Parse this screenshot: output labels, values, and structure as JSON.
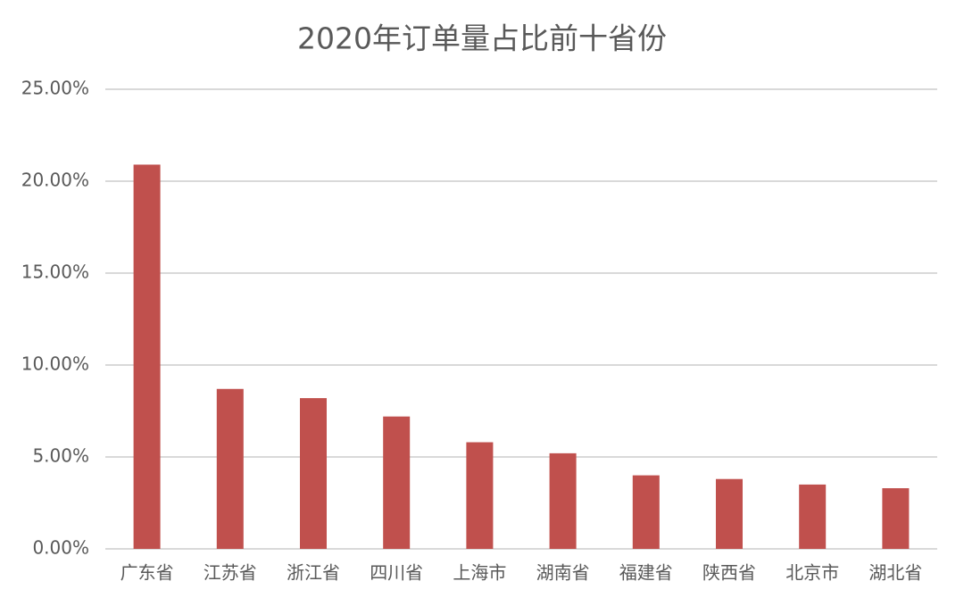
{
  "chart_data": {
    "type": "bar",
    "title": "2020年订单量占比前十省份",
    "categories": [
      "广东省",
      "江苏省",
      "浙江省",
      "四川省",
      "上海市",
      "湖南省",
      "福建省",
      "陕西省",
      "北京市",
      "湖北省"
    ],
    "values": [
      20.9,
      8.7,
      8.2,
      7.2,
      5.8,
      5.2,
      4.0,
      3.8,
      3.5,
      3.3
    ],
    "color": "#c0504d",
    "ylim": [
      0,
      25
    ],
    "yticks": [
      {
        "value": 0,
        "label": "0.00%"
      },
      {
        "value": 5,
        "label": "5.00%"
      },
      {
        "value": 10,
        "label": "10.00%"
      },
      {
        "value": 15,
        "label": "15.00%"
      },
      {
        "value": 20,
        "label": "20.00%"
      },
      {
        "value": 25,
        "label": "25.00%"
      }
    ],
    "grid": true
  }
}
